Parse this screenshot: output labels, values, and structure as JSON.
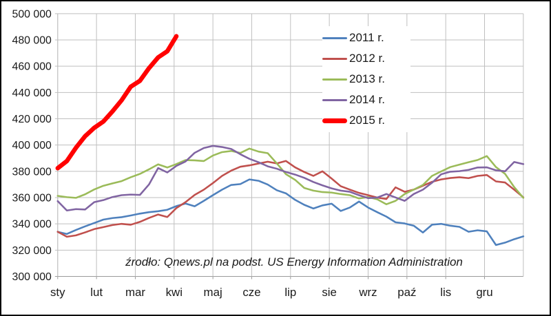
{
  "chart": {
    "chart_data": {
      "type": "line",
      "title": "",
      "xlabel": "",
      "ylabel": "",
      "ylim": [
        300000,
        500000
      ],
      "grid": true,
      "legend_position": "upper-center-right",
      "x_categories_months": [
        "sty",
        "lut",
        "mar",
        "kwi",
        "maj",
        "cze",
        "lip",
        "sie",
        "wrz",
        "paź",
        "lis",
        "gru"
      ],
      "y_tick_labels_top_to_bottom": [
        "500 000",
        "480 000",
        "460 000",
        "440 000",
        "420 000",
        "400 000",
        "380 000",
        "360 000",
        "340 000",
        "320 000",
        "300 000"
      ],
      "x_resolution": "weekly, 52 points per full year",
      "series": [
        {
          "name": "2011 r.",
          "color": "#4F81BD",
          "width": 2.6,
          "values": [
            333900,
            332300,
            335300,
            338100,
            340600,
            343200,
            344400,
            345100,
            346400,
            347800,
            348900,
            349600,
            350700,
            353500,
            355500,
            353400,
            357500,
            361800,
            366000,
            369600,
            370300,
            373800,
            372800,
            369900,
            365600,
            363200,
            358300,
            354500,
            351700,
            354100,
            355300,
            349800,
            352400,
            357000,
            352400,
            348900,
            345500,
            341200,
            340300,
            338600,
            333400,
            339400,
            340000,
            338600,
            337700,
            334000,
            335100,
            334300,
            323900,
            325700,
            328300,
            330500
          ]
        },
        {
          "name": "2012 r.",
          "color": "#C0504D",
          "width": 2.6,
          "values": [
            334000,
            330200,
            331200,
            333500,
            336000,
            337500,
            339100,
            340000,
            339300,
            341500,
            344500,
            347100,
            345200,
            352000,
            356500,
            362000,
            366000,
            371000,
            376500,
            380500,
            383500,
            384500,
            385900,
            387300,
            386000,
            387900,
            383000,
            379500,
            376500,
            380000,
            374500,
            368700,
            366100,
            363600,
            361800,
            360000,
            358900,
            367800,
            364400,
            366100,
            369000,
            372000,
            373800,
            374900,
            375500,
            374800,
            376500,
            377200,
            372300,
            371500,
            366000,
            360200
          ]
        },
        {
          "name": "2013 r.",
          "color": "#9BBB59",
          "width": 2.6,
          "values": [
            361300,
            360300,
            359800,
            362500,
            366200,
            369000,
            370800,
            372500,
            375500,
            378000,
            381500,
            385300,
            382900,
            385500,
            388500,
            388300,
            387800,
            392000,
            394600,
            395500,
            394000,
            397300,
            395000,
            393800,
            386000,
            377800,
            373500,
            367300,
            365300,
            364200,
            363800,
            362700,
            361800,
            359300,
            360400,
            358700,
            354900,
            357500,
            362700,
            366100,
            369600,
            376500,
            379900,
            383200,
            385100,
            386900,
            388600,
            391600,
            383200,
            378000,
            368000,
            359800
          ]
        },
        {
          "name": "2014 r.",
          "color": "#8064A2",
          "width": 2.6,
          "values": [
            357300,
            350200,
            351200,
            350900,
            356500,
            358100,
            360400,
            361800,
            362300,
            362000,
            370000,
            382500,
            379100,
            384100,
            387500,
            394100,
            397700,
            399400,
            398500,
            397000,
            393000,
            389500,
            386900,
            383800,
            382000,
            379500,
            377500,
            375000,
            371900,
            369300,
            367000,
            365300,
            364400,
            361800,
            359600,
            360000,
            362700,
            360100,
            357500,
            362700,
            366000,
            371300,
            377700,
            379700,
            380100,
            381100,
            382900,
            383000,
            380800,
            380000,
            387100,
            385500
          ]
        },
        {
          "name": "2015 r.",
          "color": "#FF0000",
          "width": 6.5,
          "values": [
            382400,
            387800,
            397900,
            406700,
            413100,
            417900,
            425600,
            434100,
            444400,
            448900,
            458500,
            466700,
            471400,
            482800
          ]
        }
      ]
    },
    "source_note": "źrodło: Qnews.pl na podst. US Energy Information Administration",
    "style": {
      "grid_color": "#bfbfbf",
      "axis_color": "#9a9a9a",
      "tick_label_color": "#1a1a1a",
      "background": "#ffffff"
    }
  }
}
